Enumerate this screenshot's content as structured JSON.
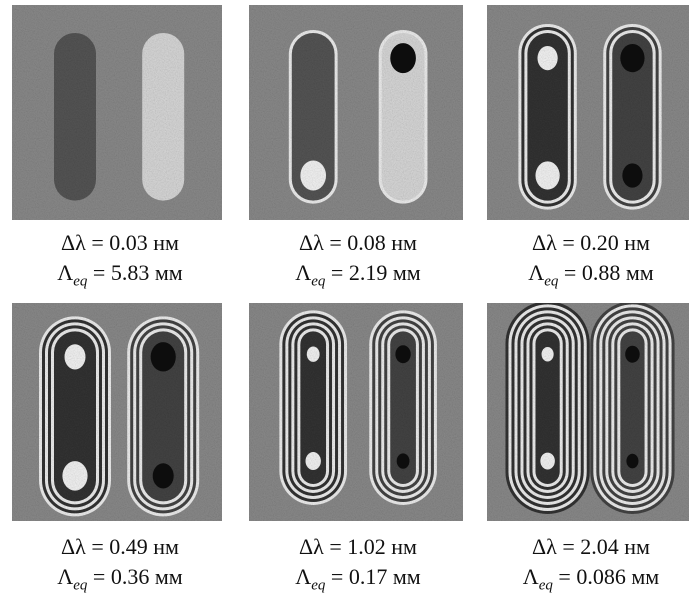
{
  "panels": [
    {
      "line1": "Δλ = 0.03 нм",
      "symbol": "Λ",
      "subscript": "eq",
      "line2": "= 5.83 мм"
    },
    {
      "line1": "Δλ = 0.08 нм",
      "symbol": "Λ",
      "subscript": "eq",
      "line2": "= 2.19 мм"
    },
    {
      "line1": "Δλ = 0.20 нм",
      "symbol": "Λ",
      "subscript": "eq",
      "line2": "= 0.88 мм"
    },
    {
      "line1": "Δλ = 0.49 нм",
      "symbol": "Λ",
      "subscript": "eq",
      "line2": "= 0.36 мм"
    },
    {
      "line1": "Δλ = 1.02 нм",
      "symbol": "Λ",
      "subscript": "eq",
      "line2": "= 0.17 мм"
    },
    {
      "line1": "Δλ = 2.04 нм",
      "symbol": "Λ",
      "subscript": "eq",
      "line2": "= 0.086 мм"
    }
  ]
}
